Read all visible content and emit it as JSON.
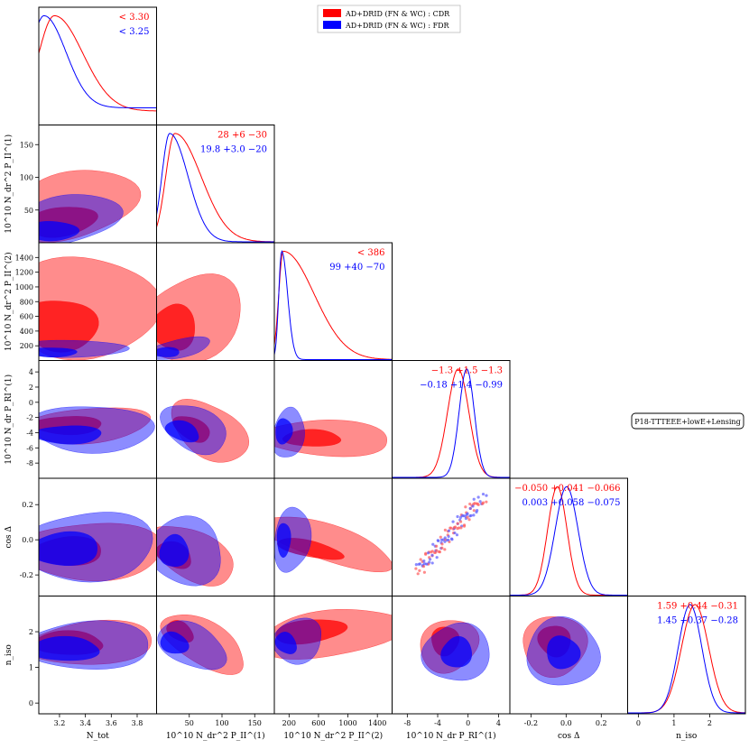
{
  "colors": {
    "cdr": "#ff0000",
    "fdr": "#0000ff",
    "cdr_fill": "#ff5a5a",
    "fdr_fill": "#5a5aff"
  },
  "legend": {
    "cdr": "AD+DRID (FN & WC) : CDR",
    "fdr": "AD+DRID (FN & WC) : FDR"
  },
  "dataset_label": "P18-TTTEEE+lowE+Lensing",
  "chart_data": {
    "type": "triangle",
    "parameters": [
      {
        "name": "N_tot",
        "label": "N_tot",
        "ticks": [
          "3.2",
          "3.4",
          "3.6",
          "3.8"
        ],
        "range": [
          3.04,
          3.95
        ]
      },
      {
        "name": "P_II_1",
        "label": "10^10 N_dr^2 P_II^(1)",
        "ticks": [
          "50",
          "100",
          "150"
        ],
        "range": [
          0,
          180
        ]
      },
      {
        "name": "P_II_2",
        "label": "10^10 N_dr^2 P_II^(2)",
        "ticks": [
          "200",
          "600",
          "1000",
          "1400"
        ],
        "range": [
          0,
          1600
        ]
      },
      {
        "name": "P_RI_1",
        "label": "10^10 N_dr P_RI^(1)",
        "ticks": [
          "-8",
          "-4",
          "0",
          "4"
        ],
        "range": [
          -10,
          5.5
        ]
      },
      {
        "name": "cos_delta",
        "label": "cos Δ",
        "ticks": [
          "-0.2",
          "0.0",
          "0.2"
        ],
        "range": [
          -0.32,
          0.35
        ]
      },
      {
        "name": "n_iso",
        "label": "n_iso",
        "ticks": [
          "0",
          "1",
          "2"
        ],
        "range": [
          -0.3,
          3.0
        ]
      }
    ],
    "diag_stats": [
      {
        "cdr": "< 3.30",
        "fdr": "< 3.25"
      },
      {
        "cdr": "28 +6 −30",
        "fdr": "19.8 +3.0 −20"
      },
      {
        "cdr": "< 386",
        "fdr": "99 +40 −70"
      },
      {
        "cdr": "−1.3 +1.5 −1.3",
        "fdr": "−0.18 +1.4 −0.99"
      },
      {
        "cdr": "−0.050 +0.041 −0.066",
        "fdr": "0.003 +0.058 −0.075"
      },
      {
        "cdr": "1.59 +0.44 −0.31",
        "fdr": "1.45 +0.37 −0.28"
      }
    ],
    "ylabels": {
      "P_II_1": "10^10 N_dr^2 P_II^(1)",
      "P_II_2": "10^10 N_dr^2 P_II^(2)",
      "P_RI_1": "10^10 N_dr P_RI^(1)",
      "cos_delta": "cos Δ",
      "n_iso": "n_iso"
    },
    "ytick_labels": {
      "P_II_1": [
        "50",
        "100",
        "150"
      ],
      "P_II_2": [
        "200",
        "400",
        "600",
        "800",
        "1000",
        "1200",
        "1400"
      ],
      "P_RI_1": [
        "-8",
        "-6",
        "-4",
        "-2",
        "0",
        "2",
        "4"
      ],
      "cos_delta": [
        "-0.2",
        "0.0",
        "0.2"
      ],
      "n_iso": [
        "0",
        "1",
        "2"
      ]
    }
  }
}
